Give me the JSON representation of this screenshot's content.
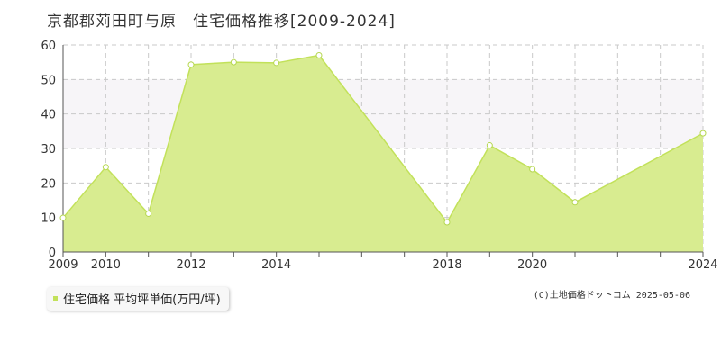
{
  "title": "京都郡苅田町与原　住宅価格推移[2009-2024]",
  "legend_label": "住宅価格 平均坪単価(万円/坪)",
  "copyright": "(C)土地価格ドットコム 2025-05-06",
  "colors": {
    "fill": "#d8ec90",
    "line": "#c2e15a",
    "marker_fill": "#ffffff",
    "marker_stroke": "#b5d750",
    "grid": "#c9c9c9",
    "axis": "#555555",
    "band": "#f7f5f8",
    "tick_text": "#333333"
  },
  "chart_data": {
    "type": "area",
    "x": [
      2009,
      2010,
      2011,
      2012,
      2013,
      2014,
      2015,
      2016,
      2017,
      2018,
      2019,
      2020,
      2021,
      2022,
      2023,
      2024
    ],
    "values": [
      9.9,
      24.6,
      11.1,
      54.3,
      55.0,
      54.8,
      57.0,
      null,
      null,
      8.6,
      30.9,
      24.0,
      14.4,
      null,
      null,
      34.4
    ],
    "x_ticks": [
      2009,
      2010,
      2012,
      2014,
      2018,
      2020,
      2024
    ],
    "x_tick_labels": [
      "2009",
      "2010",
      "2012",
      "2014",
      "2018",
      "2020",
      "2024"
    ],
    "x_range": [
      2009,
      2024
    ],
    "ylim": [
      0,
      60
    ],
    "y_ticks": [
      0,
      10,
      20,
      30,
      40,
      50,
      60
    ],
    "y_tick_labels": [
      "0",
      "10",
      "20",
      "30",
      "40",
      "50",
      "60"
    ],
    "grid": true,
    "legend_position": "bottom-left",
    "title": "京都郡苅田町与原　住宅価格推移[2009-2024]",
    "series_name": "住宅価格 平均坪単価(万円/坪)",
    "xlabel": "",
    "ylabel": ""
  }
}
